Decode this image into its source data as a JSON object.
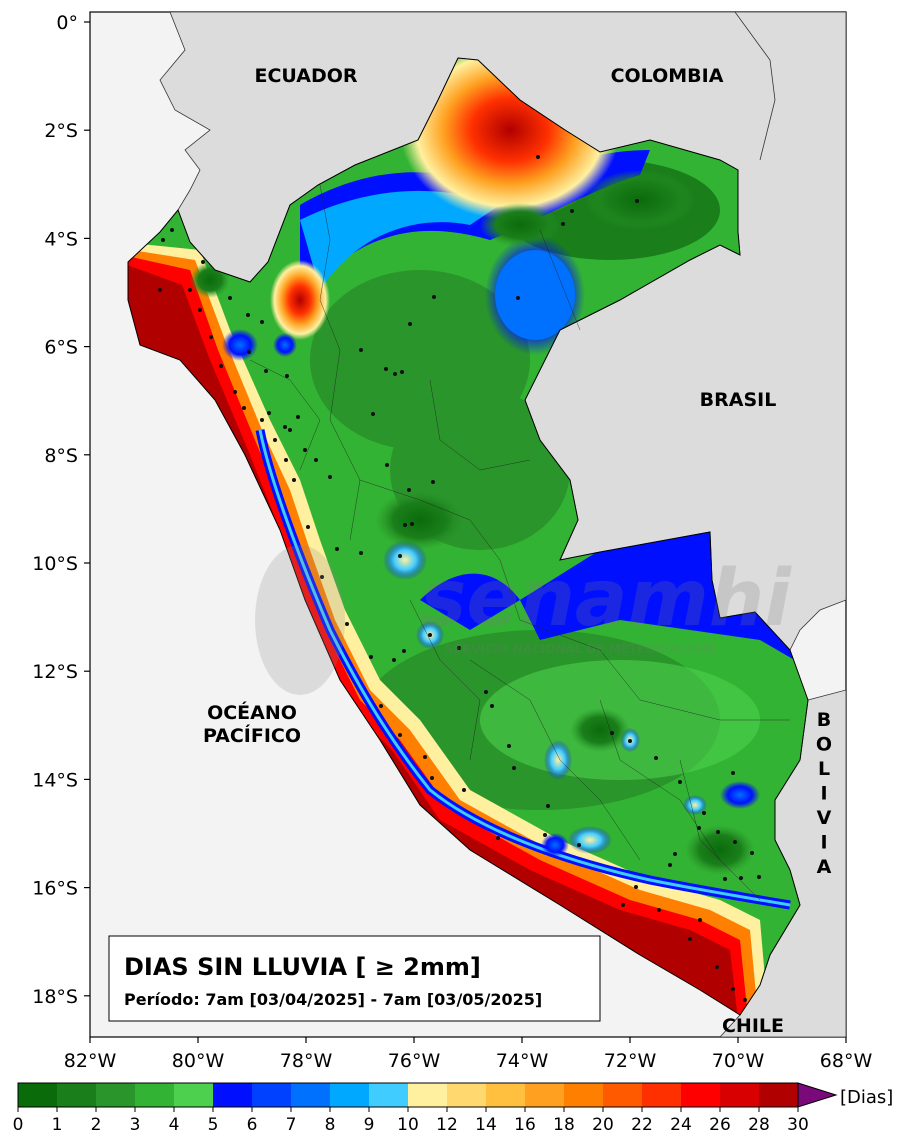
{
  "map": {
    "title": "DIAS SIN LLUVIA [ ≥ 2mm]",
    "period": "Período: 7am [03/04/2025] - 7am [03/05/2025]",
    "lon_ticks": [
      "82°W",
      "80°W",
      "78°W",
      "76°W",
      "74°W",
      "72°W",
      "70°W",
      "68°W"
    ],
    "lat_ticks": [
      "0°",
      "2°S",
      "4°S",
      "6°S",
      "8°S",
      "10°S",
      "12°S",
      "14°S",
      "16°S",
      "18°S"
    ],
    "labels": {
      "ecuador": "ECUADOR",
      "colombia": "COLOMBIA",
      "brasil": "BRASIL",
      "chile": "CHILE",
      "oceano_line1": "OCÉANO",
      "oceano_line2": "PACÍFICO",
      "bolivia_letters": [
        "B",
        "O",
        "L",
        "I",
        "V",
        "I",
        "A"
      ]
    },
    "watermark": {
      "brand": "senamhi",
      "sub": "SERVICIO NACIONAL DE METEOROLOGÍA"
    },
    "colors": {
      "ocean": "#f3f3f3",
      "neighbor_land": "#dcdcdc",
      "dry_red": "#b00000",
      "wet_green": "#2a9a2a",
      "blue": "#0010ff"
    }
  },
  "colorbar": {
    "unit": "[Dias]",
    "ticks": [
      "0",
      "1",
      "2",
      "3",
      "4",
      "5",
      "6",
      "7",
      "8",
      "9",
      "10",
      "12",
      "14",
      "16",
      "18",
      "20",
      "22",
      "24",
      "26",
      "28",
      "30"
    ],
    "colors": [
      "#0a6b0a",
      "#1a7f1a",
      "#2a952a",
      "#33b333",
      "#4dd04d",
      "#0010ff",
      "#0040ff",
      "#0070ff",
      "#00a8ff",
      "#40ccff",
      "#fff0a0",
      "#ffd870",
      "#ffc040",
      "#ffa020",
      "#ff8000",
      "#ff5a00",
      "#ff3000",
      "#ff0000",
      "#d80000",
      "#b00000"
    ],
    "extend_color": "#7a0a7a"
  }
}
